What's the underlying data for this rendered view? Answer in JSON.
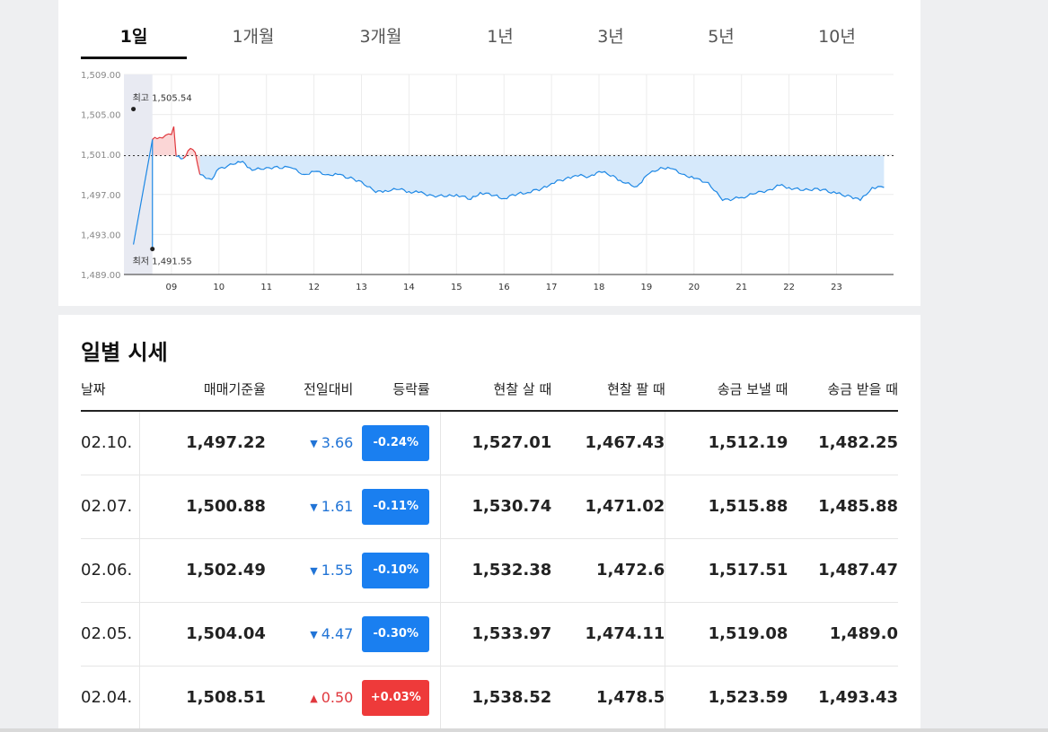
{
  "tabs": [
    {
      "label": "1일",
      "active": true
    },
    {
      "label": "1개월",
      "active": false
    },
    {
      "label": "3개월",
      "active": false
    },
    {
      "label": "1년",
      "active": false
    },
    {
      "label": "3년",
      "active": false
    },
    {
      "label": "5년",
      "active": false
    },
    {
      "label": "10년",
      "active": false
    }
  ],
  "chart": {
    "high_label": "최고 1,505.54",
    "low_label": "최저 1,491.55",
    "colors": {
      "line": "#1e88e5",
      "fill_down": "#d6e9fb",
      "up_line": "#e0383e",
      "fill_up": "#fbd6d6"
    }
  },
  "chart_data": {
    "type": "line",
    "title": "",
    "ylim": [
      1489,
      1509
    ],
    "yticks": [
      "1,509.00",
      "1,505.00",
      "1,501.00",
      "1,497.00",
      "1,493.00",
      "1,489.00"
    ],
    "xticks": [
      "09",
      "10",
      "11",
      "12",
      "13",
      "14",
      "15",
      "16",
      "17",
      "18",
      "19",
      "20",
      "21",
      "22",
      "23"
    ],
    "reference_value": 1500.88,
    "high": 1505.54,
    "low": 1491.55,
    "series": [
      {
        "x_hours": [
          8.2,
          8.6,
          8.75,
          9.0,
          9.05,
          9.1,
          9.25,
          9.4,
          9.5,
          9.6,
          9.85,
          10.0,
          10.3,
          10.5,
          10.7,
          11.0,
          11.5,
          11.8,
          12.0,
          12.3,
          12.5,
          13.0,
          13.3,
          13.5,
          13.8,
          14.0,
          14.2,
          14.5,
          14.8,
          15.0,
          15.3,
          15.5,
          15.8,
          16.0,
          16.3,
          16.5,
          16.8,
          17.0,
          17.3,
          17.5,
          17.8,
          18.0,
          18.3,
          18.5,
          18.8,
          19.0,
          19.3,
          19.5,
          19.8,
          20.0,
          20.3,
          20.6,
          21.0,
          21.3,
          21.6,
          21.8,
          22.0,
          22.3,
          22.6,
          23.0,
          23.3,
          23.5,
          23.75,
          24.0
        ],
        "values": [
          1492.0,
          1502.5,
          1502.7,
          1503.0,
          1503.8,
          1500.8,
          1500.6,
          1501.6,
          1501.2,
          1499.0,
          1498.5,
          1499.6,
          1500.0,
          1500.3,
          1499.4,
          1499.7,
          1499.7,
          1499.0,
          1499.3,
          1499.0,
          1499.0,
          1498.3,
          1497.2,
          1497.4,
          1497.5,
          1497.3,
          1497.2,
          1496.9,
          1496.8,
          1497.0,
          1496.5,
          1497.2,
          1496.9,
          1496.6,
          1497.1,
          1497.2,
          1497.6,
          1498.1,
          1498.6,
          1498.9,
          1498.8,
          1499.3,
          1498.9,
          1498.2,
          1497.8,
          1498.9,
          1499.7,
          1499.6,
          1499.0,
          1498.6,
          1498.2,
          1496.4,
          1496.7,
          1497.1,
          1497.5,
          1497.9,
          1497.7,
          1497.4,
          1497.6,
          1497.1,
          1496.8,
          1496.4,
          1497.7,
          1497.7
        ]
      }
    ]
  },
  "daily": {
    "title": "일별 시세",
    "headers": [
      "날짜",
      "매매기준율",
      "전일대비",
      "등락률",
      "현찰 살 때",
      "현찰 팔 때",
      "송금 보낼 때",
      "송금 받을 때"
    ],
    "rows": [
      {
        "date": "02.10.",
        "base": "1,497.22",
        "dir": "down",
        "arrow": "▼",
        "change": "3.66",
        "rate": "-0.24%",
        "cash_buy": "1,527.01",
        "cash_sell": "1,467.43",
        "send": "1,512.19",
        "receive": "1,482.25"
      },
      {
        "date": "02.07.",
        "base": "1,500.88",
        "dir": "down",
        "arrow": "▼",
        "change": "1.61",
        "rate": "-0.11%",
        "cash_buy": "1,530.74",
        "cash_sell": "1,471.02",
        "send": "1,515.88",
        "receive": "1,485.88"
      },
      {
        "date": "02.06.",
        "base": "1,502.49",
        "dir": "down",
        "arrow": "▼",
        "change": "1.55",
        "rate": "-0.10%",
        "cash_buy": "1,532.38",
        "cash_sell": "1,472.6",
        "send": "1,517.51",
        "receive": "1,487.47"
      },
      {
        "date": "02.05.",
        "base": "1,504.04",
        "dir": "down",
        "arrow": "▼",
        "change": "4.47",
        "rate": "-0.30%",
        "cash_buy": "1,533.97",
        "cash_sell": "1,474.11",
        "send": "1,519.08",
        "receive": "1,489.0"
      },
      {
        "date": "02.04.",
        "base": "1,508.51",
        "dir": "up",
        "arrow": "▲",
        "change": "0.50",
        "rate": "+0.03%",
        "cash_buy": "1,538.52",
        "cash_sell": "1,478.5",
        "send": "1,523.59",
        "receive": "1,493.43"
      }
    ]
  }
}
